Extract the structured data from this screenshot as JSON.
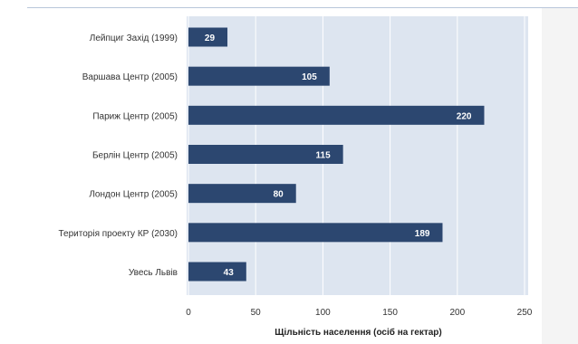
{
  "chart_data": {
    "type": "bar",
    "orientation": "horizontal",
    "categories": [
      "Лейпциг Захід (1999)",
      "Варшава Центр (2005)",
      "Париж Центр (2005)",
      "Берлін Центр (2005)",
      "Лондон Центр (2005)",
      "Територія проекту КР (2030)",
      "Увесь Львів"
    ],
    "values": [
      29,
      105,
      220,
      115,
      80,
      189,
      43
    ],
    "xlabel": "Щільність населення (осіб на гектар)",
    "ylabel": "",
    "xlim": [
      0,
      250
    ],
    "xticks": [
      0,
      50,
      100,
      150,
      200,
      250
    ],
    "grid": "vertical",
    "bar_color": "#2c4770",
    "plot_background": "#dde5f0"
  }
}
